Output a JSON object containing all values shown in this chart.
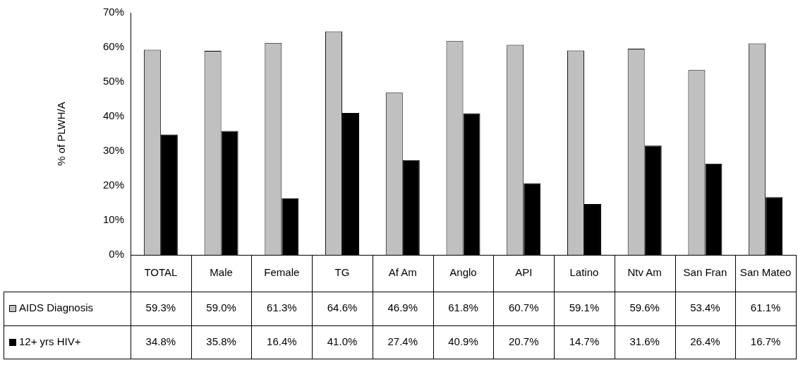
{
  "chart_data": {
    "type": "bar",
    "ylabel": "% of PLWH/A",
    "categories": [
      "TOTAL",
      "Male",
      "Female",
      "TG",
      "Af Am",
      "Anglo",
      "API",
      "Latino",
      "Ntv Am",
      "San Fran",
      "San Mateo"
    ],
    "series": [
      {
        "name": "AIDS Diagnosis",
        "color": "#c0c0c0",
        "values": [
          59.3,
          59.0,
          61.3,
          64.6,
          46.9,
          61.8,
          60.7,
          59.1,
          59.6,
          53.4,
          61.1
        ],
        "value_labels": [
          "59.3%",
          "59.0%",
          "61.3%",
          "64.6%",
          "46.9%",
          "61.8%",
          "60.7%",
          "59.1%",
          "59.6%",
          "53.4%",
          "61.1%"
        ]
      },
      {
        "name": "12+ yrs HIV+",
        "color": "#000000",
        "values": [
          34.8,
          35.8,
          16.4,
          41.0,
          27.4,
          40.9,
          20.7,
          14.7,
          31.6,
          26.4,
          16.7
        ],
        "value_labels": [
          "34.8%",
          "35.8%",
          "16.4%",
          "41.0%",
          "27.4%",
          "40.9%",
          "20.7%",
          "14.7%",
          "31.6%",
          "26.4%",
          "16.7%"
        ]
      }
    ],
    "ylim": [
      0,
      70
    ],
    "yticks": [
      {
        "value": 0,
        "label": "0%"
      },
      {
        "value": 10,
        "label": "10%"
      },
      {
        "value": 20,
        "label": "20%"
      },
      {
        "value": 30,
        "label": "30%"
      },
      {
        "value": 40,
        "label": "40%"
      },
      {
        "value": 50,
        "label": "50%"
      },
      {
        "value": 60,
        "label": "60%"
      },
      {
        "value": 70,
        "label": "70%"
      }
    ],
    "legend": "bottom"
  }
}
